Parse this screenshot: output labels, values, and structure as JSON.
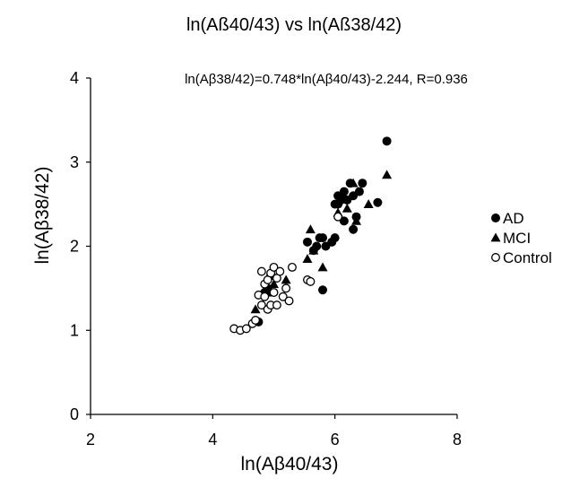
{
  "chart_data": {
    "type": "scatter",
    "title": "ln(Aß40/43) vs ln(Aß38/42)",
    "annotation": "ln(Aβ38/42)=0.748*ln(Aβ40/43)-2.244, R=0.936",
    "xlabel": "ln(Aβ40/43)",
    "ylabel": "ln(Aβ38/42)",
    "xlim": [
      2,
      8
    ],
    "ylim": [
      0,
      4
    ],
    "xticks": [
      2,
      4,
      6,
      8
    ],
    "yticks": [
      0,
      1,
      2,
      3,
      4
    ],
    "grid": false,
    "legend_position": "right",
    "series": [
      {
        "name": "AD",
        "marker": "filled-circle",
        "color": "#000000",
        "x": [
          4.75,
          4.85,
          4.9,
          4.95,
          5.55,
          5.65,
          5.7,
          5.75,
          5.8,
          5.8,
          5.85,
          5.95,
          6.0,
          6.0,
          6.05,
          6.05,
          6.1,
          6.15,
          6.15,
          6.2,
          6.25,
          6.3,
          6.3,
          6.35,
          6.4,
          6.45,
          6.7,
          6.85
        ],
        "y": [
          1.1,
          1.45,
          1.5,
          1.65,
          2.05,
          1.95,
          2.0,
          2.1,
          2.1,
          1.48,
          2.0,
          2.05,
          2.1,
          2.5,
          2.5,
          2.6,
          2.55,
          2.65,
          2.3,
          2.55,
          2.75,
          2.6,
          2.2,
          2.35,
          2.65,
          2.75,
          2.52,
          3.25
        ]
      },
      {
        "name": "MCI",
        "marker": "filled-triangle",
        "color": "#000000",
        "x": [
          4.7,
          4.9,
          5.0,
          5.2,
          5.55,
          5.6,
          5.65,
          5.8,
          6.05,
          6.15,
          6.2,
          6.3,
          6.35,
          6.55,
          6.85
        ],
        "y": [
          1.25,
          1.45,
          1.55,
          1.6,
          1.85,
          2.2,
          1.95,
          1.75,
          2.4,
          2.6,
          2.45,
          2.75,
          2.3,
          2.5,
          2.85
        ]
      },
      {
        "name": "Control",
        "marker": "open-circle",
        "color": "#000000",
        "x": [
          4.35,
          4.45,
          4.55,
          4.65,
          4.7,
          4.75,
          4.8,
          4.8,
          4.85,
          4.85,
          4.9,
          4.9,
          4.95,
          4.95,
          5.0,
          5.0,
          5.05,
          5.05,
          5.1,
          5.15,
          5.2,
          5.25,
          5.3,
          5.55,
          5.6,
          6.05
        ],
        "y": [
          1.02,
          1.0,
          1.02,
          1.08,
          1.12,
          1.42,
          1.3,
          1.7,
          1.4,
          1.55,
          1.25,
          1.6,
          1.3,
          1.68,
          1.45,
          1.75,
          1.62,
          1.3,
          1.7,
          1.4,
          1.5,
          1.35,
          1.75,
          1.6,
          1.58,
          2.35
        ]
      }
    ]
  }
}
